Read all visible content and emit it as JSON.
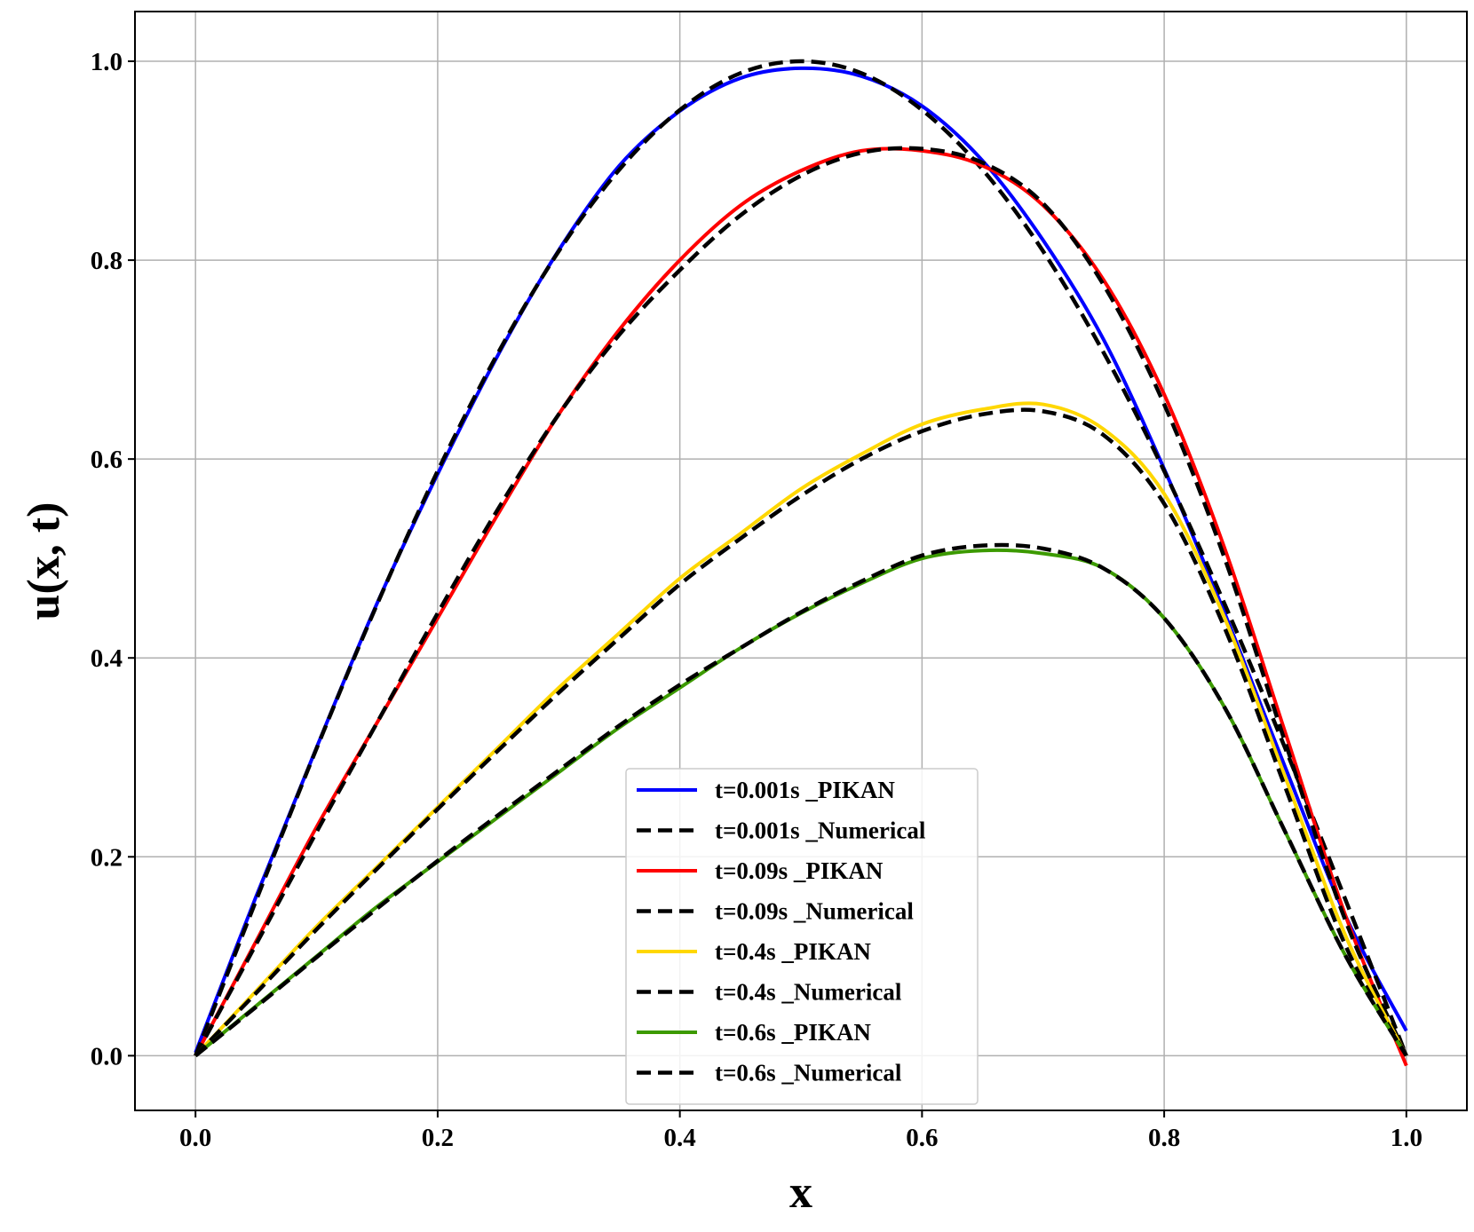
{
  "chart_data": {
    "type": "line",
    "title": "",
    "xlabel": "x",
    "ylabel": "u(x, t)",
    "xlim": [
      -0.05,
      1.05
    ],
    "ylim": [
      -0.055,
      1.05
    ],
    "xticks": [
      0.0,
      0.2,
      0.4,
      0.6,
      0.8,
      1.0
    ],
    "yticks": [
      0.0,
      0.2,
      0.4,
      0.6,
      0.8,
      1.0
    ],
    "xtick_labels": [
      "0.0",
      "0.2",
      "0.4",
      "0.6",
      "0.8",
      "1.0"
    ],
    "ytick_labels": [
      "0.0",
      "0.2",
      "0.4",
      "0.6",
      "0.8",
      "1.0"
    ],
    "grid": true,
    "legend_position": "lower-center",
    "x": [
      0.0,
      0.05,
      0.1,
      0.15,
      0.2,
      0.25,
      0.3,
      0.35,
      0.4,
      0.45,
      0.5,
      0.55,
      0.6,
      0.65,
      0.7,
      0.75,
      0.8,
      0.85,
      0.9,
      0.95,
      1.0
    ],
    "series": [
      {
        "name": "t=0.001s _PIKAN",
        "color": "#0000ff",
        "style": "solid",
        "values": [
          0.003,
          0.16,
          0.31,
          0.455,
          0.585,
          0.705,
          0.81,
          0.895,
          0.95,
          0.983,
          0.993,
          0.985,
          0.955,
          0.9,
          0.82,
          0.72,
          0.59,
          0.445,
          0.29,
          0.14,
          0.025
        ]
      },
      {
        "name": "t=0.001s _Numerical",
        "color": "#000000",
        "style": "dashed",
        "values": [
          0.0,
          0.156,
          0.309,
          0.454,
          0.588,
          0.707,
          0.809,
          0.891,
          0.951,
          0.988,
          1.0,
          0.988,
          0.951,
          0.891,
          0.809,
          0.707,
          0.588,
          0.454,
          0.309,
          0.156,
          0.0
        ]
      },
      {
        "name": "t=0.09s _PIKAN",
        "color": "#ff0000",
        "style": "solid",
        "values": [
          0.0,
          0.115,
          0.23,
          0.335,
          0.44,
          0.545,
          0.645,
          0.73,
          0.8,
          0.855,
          0.89,
          0.91,
          0.91,
          0.895,
          0.855,
          0.78,
          0.665,
          0.51,
          0.325,
          0.14,
          -0.01
        ]
      },
      {
        "name": "t=0.09s _Numerical",
        "color": "#000000",
        "style": "dashed",
        "values": [
          0.0,
          0.112,
          0.225,
          0.335,
          0.445,
          0.55,
          0.645,
          0.725,
          0.79,
          0.845,
          0.885,
          0.908,
          0.912,
          0.898,
          0.857,
          0.775,
          0.655,
          0.5,
          0.315,
          0.135,
          0.0
        ]
      },
      {
        "name": "t=0.4s _PIKAN",
        "color": "#ffd700",
        "style": "solid",
        "values": [
          0.0,
          0.065,
          0.13,
          0.19,
          0.25,
          0.31,
          0.37,
          0.425,
          0.48,
          0.525,
          0.57,
          0.605,
          0.635,
          0.65,
          0.655,
          0.63,
          0.565,
          0.44,
          0.28,
          0.12,
          0.0
        ]
      },
      {
        "name": "t=0.4s _Numerical",
        "color": "#000000",
        "style": "dashed",
        "values": [
          0.0,
          0.063,
          0.127,
          0.188,
          0.248,
          0.307,
          0.365,
          0.42,
          0.474,
          0.52,
          0.563,
          0.6,
          0.628,
          0.645,
          0.648,
          0.624,
          0.555,
          0.43,
          0.27,
          0.11,
          0.0
        ]
      },
      {
        "name": "t=0.6s _PIKAN",
        "color": "#3c9a00",
        "style": "solid",
        "values": [
          0.0,
          0.05,
          0.1,
          0.15,
          0.195,
          0.24,
          0.285,
          0.33,
          0.37,
          0.41,
          0.445,
          0.475,
          0.5,
          0.508,
          0.505,
          0.49,
          0.44,
          0.35,
          0.225,
          0.1,
          0.0
        ]
      },
      {
        "name": "t=0.6s _Numerical",
        "color": "#000000",
        "style": "dashed",
        "values": [
          0.0,
          0.049,
          0.099,
          0.148,
          0.196,
          0.242,
          0.287,
          0.332,
          0.373,
          0.41,
          0.446,
          0.477,
          0.503,
          0.513,
          0.51,
          0.49,
          0.44,
          0.35,
          0.225,
          0.1,
          0.0
        ]
      }
    ]
  }
}
